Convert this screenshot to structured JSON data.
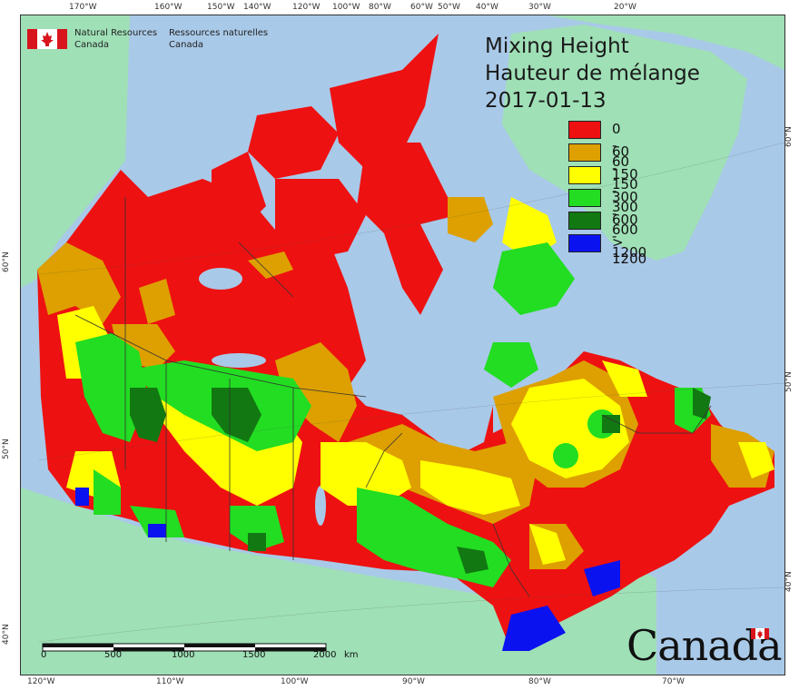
{
  "title": {
    "line1": "Mixing Height",
    "line2": "Hauteur de mélange",
    "line3": "2017-01-13"
  },
  "agency": {
    "english_line1": "Natural Resources",
    "english_line2": "Canada",
    "french_line1": "Ressources naturelles",
    "french_line2": "Canada"
  },
  "legend": [
    {
      "label": "0 - 60",
      "color": "#ee1111"
    },
    {
      "label": "60 - 150",
      "color": "#dda000"
    },
    {
      "label": "150 - 300",
      "color": "#ffff00"
    },
    {
      "label": "300 - 600",
      "color": "#22dd22"
    },
    {
      "label": "600 - 1200",
      "color": "#127812"
    },
    {
      "label": "> 1200",
      "color": "#0a12f0"
    }
  ],
  "graticule": {
    "top": [
      "170°W",
      "160°W",
      "150°W",
      "140°W",
      "120°W",
      "100°W",
      "80°W",
      "60°W",
      "50°W",
      "40°W",
      "30°W",
      "20°W"
    ],
    "bottom": [
      "120°W",
      "110°W",
      "100°W",
      "90°W",
      "80°W",
      "70°W"
    ],
    "left": [
      "60°N",
      "50°N",
      "40°N"
    ],
    "right": [
      "60°N",
      "50°N",
      "40°N"
    ]
  },
  "scalebar": {
    "labels": [
      "0",
      "500",
      "1000",
      "1500",
      "2000"
    ],
    "unit": "km"
  },
  "wordmark": "Canada",
  "colors": {
    "ocean": "#a9c9e8",
    "land_outside": "#9fe0b6",
    "water": "#a9c9e8"
  }
}
